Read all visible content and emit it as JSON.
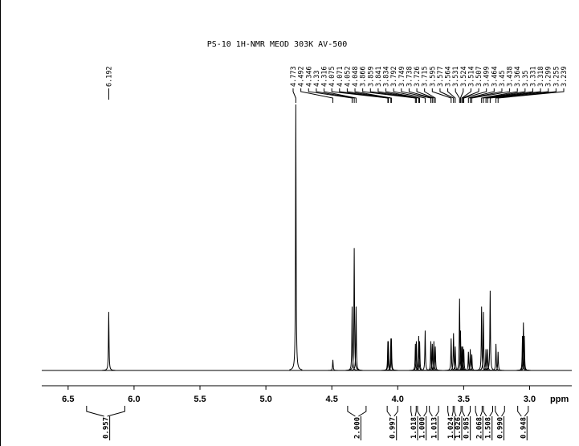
{
  "chart_data": {
    "type": "nmr",
    "title": "PS-10 1H-NMR  MEOD  303K AV-500",
    "x_label": "ppm",
    "xlim": [
      6.7,
      2.68
    ],
    "xticks": [
      6.5,
      {
        "value": 6,
        "label": "6.0"
      },
      5.5,
      {
        "value": 5,
        "label": "5.0"
      },
      4.5,
      {
        "value": 4,
        "label": "4.0"
      },
      3.5,
      {
        "value": 3,
        "label": "3.0"
      }
    ],
    "series": [
      {
        "x": [
          6.192,
          4.773,
          4.492,
          4.346,
          4.33,
          4.316,
          4.075,
          4.071,
          4.052,
          4.048,
          3.866,
          3.859,
          3.841,
          3.834,
          3.792,
          3.749,
          3.738,
          3.726,
          3.715,
          3.595,
          3.577,
          3.564,
          3.531,
          3.524,
          3.514,
          3.507,
          3.499,
          3.464,
          3.45,
          3.438,
          3.364,
          3.35,
          3.331,
          3.318,
          3.299,
          3.255,
          3.239,
          3.054,
          3.047,
          3.04
        ],
        "values": [
          22,
          100,
          4,
          24,
          46,
          24,
          11,
          11,
          12,
          12,
          10,
          11,
          13,
          11,
          15,
          11,
          10,
          11,
          9,
          12,
          14,
          9,
          27,
          15,
          9,
          9,
          8,
          7,
          8,
          6,
          24,
          22,
          8,
          8,
          30,
          10,
          7,
          13,
          18,
          13
        ]
      }
    ],
    "peak_labels": [
      6.192,
      4.773,
      4.492,
      4.346,
      4.33,
      4.316,
      4.075,
      4.071,
      4.052,
      4.048,
      3.866,
      3.859,
      3.841,
      3.834,
      3.792,
      3.749,
      3.738,
      3.726,
      3.715,
      3.595,
      3.577,
      3.564,
      3.531,
      3.524,
      3.514,
      3.507,
      3.499,
      3.464,
      3.45,
      3.438,
      3.364,
      3.35,
      3.331,
      3.318,
      3.299,
      3.255,
      3.239
    ],
    "integrals": {
      "values": [
        0.957,
        2,
        0.997,
        1.018,
        1,
        1.013,
        1.024,
        1.026,
        0.985,
        2.068,
        1.508,
        0.99,
        0.948
      ],
      "value_labels": [
        "0.957",
        "2.000",
        "0.997",
        "1.018",
        "1.000",
        "1.013",
        "1.024",
        "1.026",
        "0.985",
        "2.068",
        "1.508",
        "0.990",
        "0.948"
      ],
      "ranges": [
        [
          6.36,
          6.07
        ],
        [
          4.38,
          4.24
        ],
        [
          4.08,
          4.0
        ],
        [
          3.9,
          3.86
        ],
        [
          3.85,
          3.78
        ],
        [
          3.76,
          3.69
        ],
        [
          3.62,
          3.58
        ],
        [
          3.57,
          3.52
        ],
        [
          3.51,
          3.45
        ],
        [
          3.41,
          3.36
        ],
        [
          3.35,
          3.28
        ],
        [
          3.26,
          3.19
        ],
        [
          3.09,
          3.01
        ]
      ]
    }
  }
}
